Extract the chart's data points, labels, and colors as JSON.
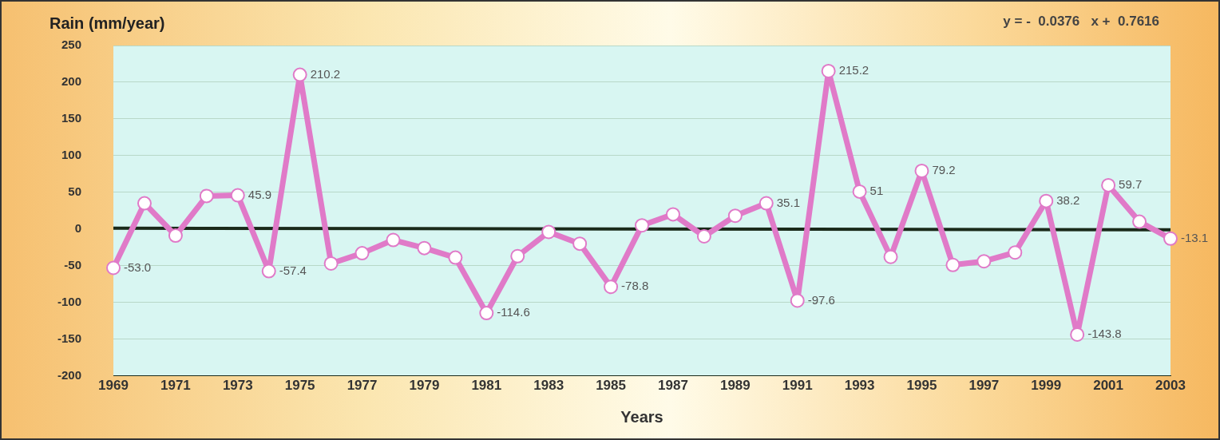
{
  "chart_data": {
    "type": "line",
    "ylabel": "Rain (mm/year)",
    "xlabel": "Years",
    "annotations": [
      "y = -  0.0376   x +  0.7616"
    ],
    "categories": [
      "1969",
      null,
      "1971",
      null,
      "1973",
      null,
      "1975",
      null,
      "1977",
      null,
      "1979",
      null,
      "1981",
      null,
      "1983",
      null,
      "1985",
      null,
      "1987",
      null,
      "1989",
      null,
      "1991",
      null,
      "1993",
      null,
      "1995",
      null,
      "1997",
      null,
      "1999",
      null,
      "2001",
      null,
      "2003"
    ],
    "series": [
      {
        "color": "#e07ac8",
        "values": [
          -53.0,
          35,
          -9,
          45,
          45.9,
          -57.4,
          210.2,
          -47,
          -33,
          -15,
          -26,
          -39,
          -114.6,
          -37,
          -4,
          -20,
          -78.8,
          5,
          20,
          -10,
          18,
          35.1,
          -97.6,
          215.2,
          51,
          -38,
          79.2,
          -49,
          -44,
          -32,
          38.2,
          -143.8,
          59.7,
          10,
          -13.1
        ],
        "value_labels": [
          "-53.0",
          null,
          null,
          null,
          "45.9",
          "-57.4",
          "210.2",
          null,
          null,
          null,
          null,
          null,
          "-114.6",
          null,
          null,
          null,
          "-78.8",
          null,
          null,
          null,
          null,
          "35.1",
          "-97.6",
          "215.2",
          "51",
          null,
          "79.2",
          null,
          null,
          null,
          "38.2",
          "-143.8",
          "59.7",
          null,
          "-13.1"
        ]
      },
      {
        "color": "#1a2a1a",
        "marker": "none",
        "values": [
          1,
          null,
          null,
          null,
          null,
          null,
          null,
          null,
          null,
          null,
          null,
          null,
          null,
          null,
          null,
          null,
          null,
          null,
          null,
          null,
          null,
          null,
          null,
          null,
          null,
          null,
          null,
          null,
          null,
          null,
          null,
          null,
          null,
          null,
          -1
        ]
      }
    ],
    "ylim": [
      -200,
      250
    ],
    "yticks": [
      -200,
      -150,
      -100,
      -50,
      0,
      50,
      100,
      150,
      200,
      250
    ],
    "grid": "y",
    "legend": false,
    "marker": "circle",
    "line_style": "solid"
  }
}
